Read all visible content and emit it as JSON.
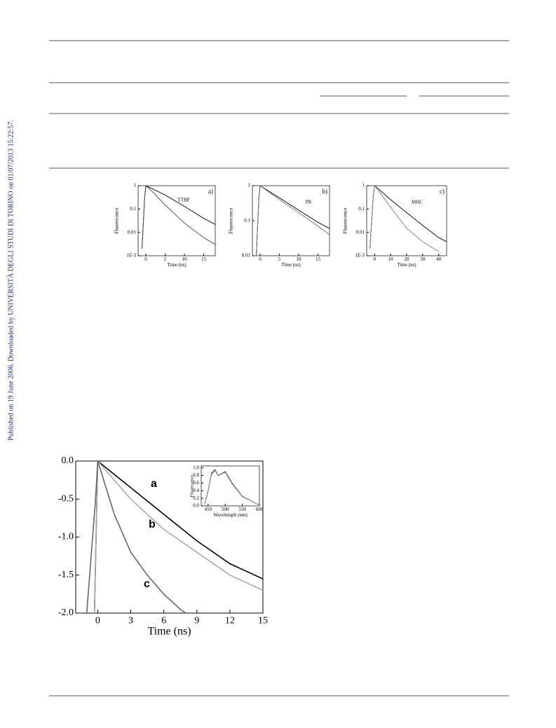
{
  "side_note": "Published on 19 June 2006. Downloaded by UNIVERSITÀ DEGLI STUDI DI TORINO on 01/07/2013 15:22:57.",
  "chart_data": [
    {
      "type": "line",
      "panel": "a)",
      "label": "TTBP",
      "ylabel": "Fluorescence",
      "xlabel": "Time (ns)",
      "log_y": true,
      "xlim": [
        -2,
        18
      ],
      "ylim": [
        0.001,
        1
      ],
      "xticks": [
        0,
        5,
        10,
        15
      ],
      "yticks": [
        1,
        0.1,
        0.01,
        {
          "value": 0.001,
          "label": "1E-3"
        }
      ],
      "series": [
        {
          "color": "#111111",
          "x": [
            -1,
            -0.3,
            0,
            2,
            5,
            10,
            15,
            18
          ],
          "values": [
            0.002,
            0.3,
            1,
            0.7,
            0.4,
            0.13,
            0.04,
            0.022
          ]
        },
        {
          "color": "#555555",
          "x": [
            -1,
            -0.3,
            0,
            2,
            5,
            10,
            15,
            18
          ],
          "values": [
            0.002,
            0.3,
            1,
            0.5,
            0.15,
            0.025,
            0.006,
            0.003
          ]
        }
      ]
    },
    {
      "type": "line",
      "panel": "b)",
      "label": "PR",
      "ylabel": "Fluorescence",
      "xlabel": "Time (ns)",
      "log_y": true,
      "xlim": [
        -2,
        18
      ],
      "ylim": [
        0.01,
        1
      ],
      "xticks": [
        0,
        5,
        10,
        15
      ],
      "yticks": [
        1,
        0.1,
        0.01
      ],
      "series": [
        {
          "color": "#111111",
          "x": [
            -1,
            -0.3,
            0,
            5,
            10,
            15,
            18
          ],
          "values": [
            0.01,
            0.5,
            1,
            0.45,
            0.2,
            0.09,
            0.06
          ]
        },
        {
          "color": "#777777",
          "x": [
            -1,
            -0.3,
            0,
            5,
            10,
            15,
            18
          ],
          "values": [
            0.01,
            0.5,
            1,
            0.4,
            0.17,
            0.07,
            0.04
          ]
        }
      ]
    },
    {
      "type": "line",
      "panel": "c)",
      "label": "MHC",
      "ylabel": "Fluorescence",
      "xlabel": "Time (ns)",
      "log_y": true,
      "xlim": [
        -5,
        45
      ],
      "ylim": [
        0.001,
        1
      ],
      "xticks": [
        0,
        10,
        20,
        30,
        40
      ],
      "yticks": [
        1,
        0.1,
        0.01,
        {
          "value": 0.001,
          "label": "1E-3"
        }
      ],
      "series": [
        {
          "color": "#111111",
          "x": [
            -3,
            -1,
            0,
            5,
            10,
            20,
            30,
            40,
            45
          ],
          "values": [
            0.002,
            0.3,
            1,
            0.5,
            0.25,
            0.07,
            0.02,
            0.006,
            0.004
          ]
        },
        {
          "color": "#888888",
          "x": [
            -3,
            -1,
            0,
            5,
            10,
            20,
            30,
            40,
            45
          ],
          "values": [
            0.002,
            0.3,
            1,
            0.35,
            0.12,
            0.015,
            0.004,
            0.0015,
            null
          ]
        }
      ]
    },
    {
      "type": "line",
      "xlabel": "Time (ns)",
      "log_y": false,
      "xlim": [
        -2,
        15
      ],
      "ylim": [
        -2,
        0
      ],
      "xticks": [
        0,
        3,
        6,
        9,
        12,
        15
      ],
      "yticks": [
        {
          "value": 0,
          "label": "0.0"
        },
        {
          "value": -0.5,
          "label": "-0.5"
        },
        {
          "value": -1,
          "label": "-1.0"
        },
        {
          "value": -1.5,
          "label": "-1.5"
        },
        {
          "value": -2,
          "label": "-2.0"
        }
      ],
      "series": [
        {
          "name": "a",
          "color": "#000000",
          "x": [
            -0.3,
            0,
            3,
            6,
            9,
            12,
            15
          ],
          "values": [
            -2,
            0,
            -0.35,
            -0.7,
            -1.05,
            -1.35,
            -1.55
          ]
        },
        {
          "name": "b",
          "color": "#aaaaaa",
          "x": [
            -0.3,
            0,
            3,
            6,
            9,
            12,
            15
          ],
          "values": [
            -2,
            0,
            -0.5,
            -0.9,
            -1.2,
            -1.5,
            -1.7
          ]
        },
        {
          "name": "c",
          "color": "#666666",
          "x": [
            -1,
            -0.2,
            0,
            1.5,
            3,
            4.5,
            6,
            7.5,
            8
          ],
          "values": [
            -2,
            -0.5,
            0,
            -0.7,
            -1.2,
            -1.5,
            -1.75,
            -1.95,
            -2
          ]
        }
      ]
    },
    {
      "type": "line",
      "ylabel": "Fluorescence",
      "xlabel": "Wavelength (nm)",
      "log_y": false,
      "xlim": [
        430,
        600
      ],
      "ylim": [
        0,
        1.05
      ],
      "xticks": [
        450,
        500,
        550,
        600
      ],
      "yticks": [
        {
          "value": 0,
          "label": "0.0"
        },
        {
          "value": 0.2,
          "label": "0.2"
        },
        {
          "value": 0.4,
          "label": "0.4"
        },
        {
          "value": 0.6,
          "label": "0.6"
        },
        {
          "value": 0.8,
          "label": "0.8"
        },
        {
          "value": 1,
          "label": "1.0"
        }
      ],
      "series": [
        {
          "color": "#222222",
          "x": [
            440,
            450,
            460,
            470,
            480,
            490,
            500,
            520,
            550,
            600
          ],
          "values": [
            0.05,
            0.4,
            0.85,
            0.95,
            0.8,
            0.85,
            0.9,
            0.6,
            0.25,
            0.02
          ]
        },
        {
          "color": "#999999",
          "x": [
            440,
            450,
            460,
            470,
            480,
            490,
            500,
            520,
            550,
            600
          ],
          "values": [
            0.04,
            0.38,
            0.82,
            0.93,
            0.79,
            0.84,
            0.88,
            0.58,
            0.24,
            0.02
          ]
        }
      ]
    }
  ]
}
